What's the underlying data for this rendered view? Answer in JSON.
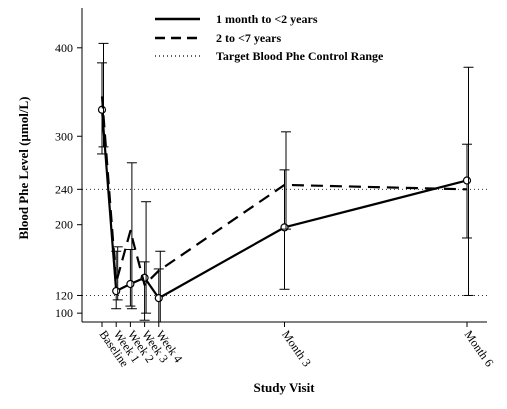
{
  "chart_data": {
    "type": "line",
    "xlabel": "Study Visit",
    "ylabel": "Blood Phe Level (µmol/L)",
    "ylim": [
      90,
      445
    ],
    "yticks": [
      100,
      120,
      200,
      240,
      300,
      400
    ],
    "x_ticks": [
      {
        "label": "Baseline",
        "day": 0
      },
      {
        "label": "Week 1",
        "day": 7
      },
      {
        "label": "Week 2",
        "day": 14
      },
      {
        "label": "Week 3",
        "day": 21
      },
      {
        "label": "Week 4",
        "day": 28
      },
      {
        "label": "Month 3",
        "day": 90
      },
      {
        "label": "Month 6",
        "day": 180
      }
    ],
    "reference_lines": [
      {
        "name": "Target Blood Phe Control Range",
        "values": [
          120,
          240
        ],
        "style": "dotted"
      }
    ],
    "legend_position": "top-center",
    "series": [
      {
        "name": "1 month to <2 years",
        "style": "solid",
        "markers": "circle",
        "points": [
          {
            "day": 0,
            "y": 330,
            "lo": 280,
            "hi": 383
          },
          {
            "day": 7,
            "y": 125,
            "lo": 105,
            "hi": 170
          },
          {
            "day": 14,
            "y": 133,
            "lo": 108,
            "hi": 172
          },
          {
            "day": 21,
            "y": 140,
            "lo": 92,
            "hi": 158
          },
          {
            "day": 28,
            "y": 117,
            "lo": 90,
            "hi": 150
          },
          {
            "day": 90,
            "y": 197,
            "lo": 127,
            "hi": 262
          },
          {
            "day": 180,
            "y": 250,
            "lo": 185,
            "hi": 291
          }
        ]
      },
      {
        "name": "2 to <7 years",
        "style": "dashed",
        "markers": "none",
        "points": [
          {
            "day": 0,
            "y": 345,
            "lo": 288,
            "hi": 405
          },
          {
            "day": 7,
            "y": 135,
            "lo": 115,
            "hi": 175
          },
          {
            "day": 14,
            "y": 193,
            "lo": 105,
            "hi": 270
          },
          {
            "day": 21,
            "y": 132,
            "lo": 100,
            "hi": 226
          },
          {
            "day": 28,
            "y": 148,
            "lo": 90,
            "hi": 170
          },
          {
            "day": 90,
            "y": 245,
            "lo": 195,
            "hi": 305
          },
          {
            "day": 180,
            "y": 240,
            "lo": 120,
            "hi": 378
          }
        ]
      }
    ]
  }
}
